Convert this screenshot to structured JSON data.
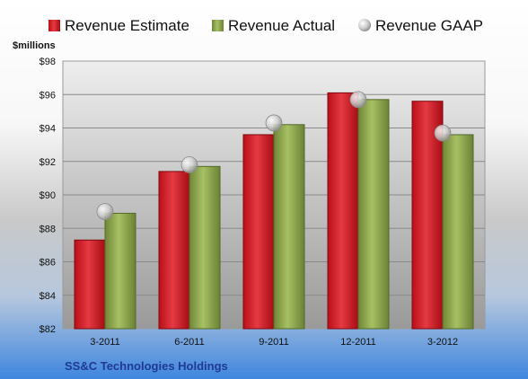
{
  "chart_data": {
    "type": "bar",
    "unit_label": "$millions",
    "categories": [
      "3-2011",
      "6-2011",
      "9-2011",
      "12-2011",
      "3-2012"
    ],
    "series": [
      {
        "name": "Revenue Estimate",
        "values": [
          87.3,
          91.4,
          93.6,
          96.1,
          95.6
        ],
        "color": "#d1121c"
      },
      {
        "name": "Revenue Actual",
        "values": [
          88.9,
          91.7,
          94.2,
          95.7,
          93.6
        ],
        "color": "#8aa34c"
      },
      {
        "name": "Revenue GAAP",
        "values": [
          89.0,
          91.8,
          94.3,
          95.7,
          93.7
        ],
        "color": "#c9c9c9",
        "marker": "sphere"
      }
    ],
    "ylim": [
      82,
      98
    ],
    "yticks": [
      82,
      84,
      86,
      88,
      90,
      92,
      94,
      96,
      98
    ],
    "ytick_labels": [
      "$82",
      "$84",
      "$86",
      "$88",
      "$90",
      "$92",
      "$94",
      "$96",
      "$98"
    ],
    "grid": true,
    "legend_position": "top",
    "footer": "SS&C Technologies Holdings"
  }
}
